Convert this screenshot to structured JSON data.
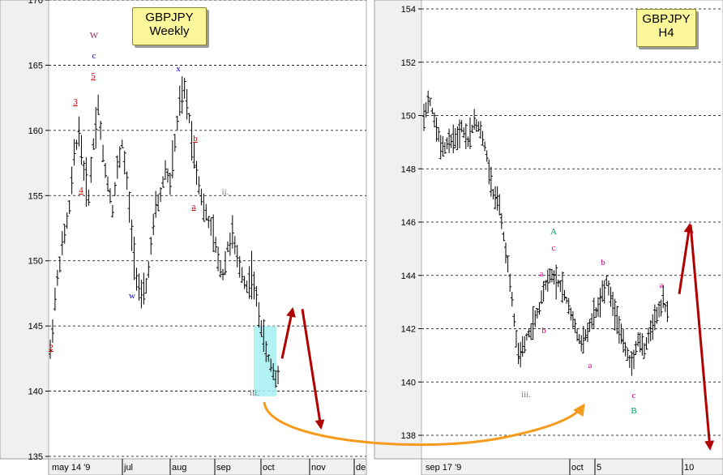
{
  "chart_data": [
    {
      "type": "candlestick",
      "title_lines": [
        "GBPJPY",
        "Weekly"
      ],
      "ylim": [
        135,
        170
      ],
      "y_ticks": [
        "135",
        "140",
        "145",
        "150",
        "155",
        "160",
        "165",
        "170"
      ],
      "x_ticks": [
        "may 14 '9",
        "jul",
        "aug",
        "sep",
        "oct",
        "nov",
        "de"
      ],
      "grid": true,
      "price_path": [
        143,
        147,
        150,
        152,
        154,
        158,
        160,
        157,
        155,
        159,
        162,
        158,
        156,
        154,
        157,
        159,
        156,
        152,
        149,
        147,
        148,
        151,
        154,
        155,
        157,
        156,
        159,
        162,
        163,
        161,
        158,
        156,
        154,
        153,
        152,
        150,
        149,
        151,
        152,
        150,
        149,
        148,
        149,
        147,
        145,
        143,
        142,
        141,
        142
      ],
      "wave_labels": [
        {
          "text": "2",
          "color": "#cc0000",
          "underline": true
        },
        {
          "text": "3",
          "color": "#cc0000",
          "underline": true
        },
        {
          "text": "4",
          "color": "#cc0000",
          "underline": true
        },
        {
          "text": "5",
          "color": "#cc0000",
          "underline": true
        },
        {
          "text": "c",
          "color": "#0000cc"
        },
        {
          "text": "W",
          "color": "#8b1a5a"
        },
        {
          "text": "w",
          "color": "#0000cc"
        },
        {
          "text": "x",
          "color": "#0000cc"
        },
        {
          "text": "b",
          "color": "#cc0000",
          "underline": true
        },
        {
          "text": "a",
          "color": "#cc0000",
          "underline": true
        },
        {
          "text": "ii.",
          "color": "#808080"
        },
        {
          "text": "i.",
          "color": "#808080"
        },
        {
          "text": "iii.",
          "color": "#808080"
        }
      ],
      "highlight_box": {
        "color": "#a6f0f2",
        "y_range": [
          139.6,
          145
        ]
      },
      "arrows": [
        {
          "color": "#b00000",
          "from": 142.5,
          "to": 146.3
        },
        {
          "color": "#b00000",
          "from": 146.3,
          "to": 137.2
        }
      ]
    },
    {
      "type": "candlestick",
      "title_lines": [
        "GBPJPY",
        "H4"
      ],
      "ylim": [
        137.3,
        154.4
      ],
      "y_ticks": [
        "138",
        "140",
        "142",
        "144",
        "146",
        "148",
        "150",
        "152",
        "154"
      ],
      "x_ticks": [
        "sep 17 '9",
        "oct",
        "5",
        "10"
      ],
      "grid": true,
      "price_path": [
        150,
        150.5,
        149.5,
        148.8,
        149.0,
        149.2,
        149.5,
        149.0,
        149.8,
        149.5,
        148.5,
        147.0,
        146.5,
        145.0,
        143.0,
        141.0,
        141.5,
        142.0,
        142.5,
        143.5,
        144.0,
        143.8,
        143.5,
        142.8,
        142.0,
        141.5,
        141.8,
        142.5,
        143.0,
        143.8,
        143.0,
        142.0,
        141.3,
        140.5,
        141.5,
        141.2,
        142.0,
        142.5,
        143.0,
        142.2
      ],
      "wave_labels": [
        {
          "text": "iii.",
          "color": "#808080"
        },
        {
          "text": "A",
          "color": "#009966"
        },
        {
          "text": "c",
          "color": "#e0007a"
        },
        {
          "text": "a",
          "color": "#e0007a"
        },
        {
          "text": "b",
          "color": "#e0007a"
        },
        {
          "text": "b",
          "color": "#e0007a"
        },
        {
          "text": "a",
          "color": "#e0007a"
        },
        {
          "text": "c",
          "color": "#e0007a"
        },
        {
          "text": "B",
          "color": "#009966"
        },
        {
          "text": "a",
          "color": "#e0007a"
        }
      ],
      "arrows": [
        {
          "color": "#b00000",
          "from": 143.3,
          "to": 145.9
        },
        {
          "color": "#b00000",
          "from": 145.9,
          "to": 137.5
        }
      ]
    }
  ],
  "connector_arrow": {
    "color": "#f59a1a"
  }
}
